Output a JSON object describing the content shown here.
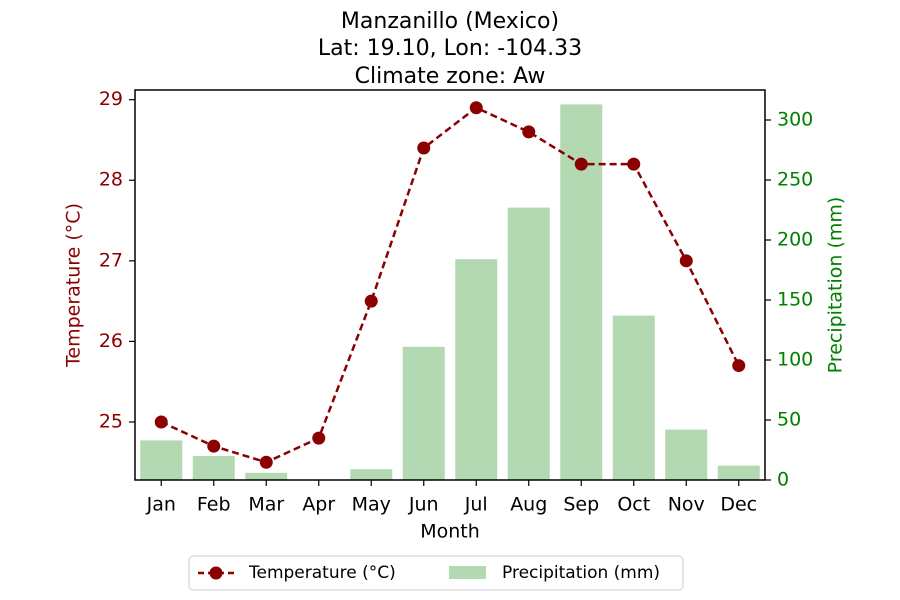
{
  "chart_data": {
    "type": "bar+line",
    "title_lines": [
      "Manzanillo (Mexico)",
      "Lat: 19.10, Lon: -104.33",
      "Climate zone: Aw"
    ],
    "xlabel": "Month",
    "categories": [
      "Jan",
      "Feb",
      "Mar",
      "Apr",
      "May",
      "Jun",
      "Jul",
      "Aug",
      "Sep",
      "Oct",
      "Nov",
      "Dec"
    ],
    "series": [
      {
        "name": "Temperature (°C)",
        "type": "line",
        "axis": "left",
        "color": "#8b0000",
        "values": [
          25.0,
          24.7,
          24.5,
          24.8,
          26.5,
          28.4,
          28.9,
          28.6,
          28.2,
          28.2,
          27.0,
          25.7
        ]
      },
      {
        "name": "Precipitation (mm)",
        "type": "bar",
        "axis": "right",
        "color": "#b2d9b2",
        "values": [
          33,
          20,
          6,
          0,
          9,
          111,
          184,
          227,
          313,
          137,
          42,
          12
        ]
      }
    ],
    "y_left": {
      "label": "Temperature (°C)",
      "color": "#8b0000",
      "ylim": [
        24.28,
        29.12
      ],
      "ticks": [
        25,
        26,
        27,
        28,
        29
      ]
    },
    "y_right": {
      "label": "Precipitation (mm)",
      "color": "#008000",
      "ylim": [
        0,
        325
      ],
      "ticks": [
        0,
        50,
        100,
        150,
        200,
        250,
        300
      ]
    },
    "legend": {
      "placement": "bottom-center"
    },
    "grid": false
  }
}
